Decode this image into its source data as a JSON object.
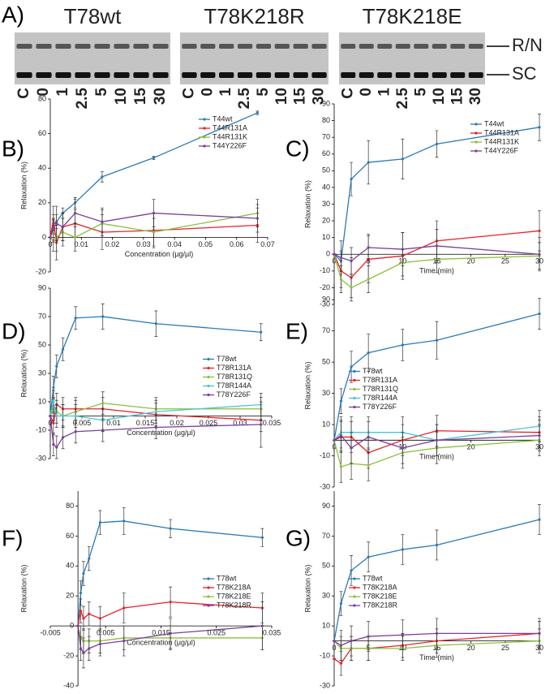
{
  "gel": {
    "panel": "A)",
    "bands": [
      "R/N",
      "SC"
    ],
    "groups": [
      {
        "name": "T78wt",
        "lanes": [
          "C",
          "0",
          "1",
          "2.5",
          "5",
          "10",
          "15",
          "30"
        ]
      },
      {
        "name": "T78K218R",
        "lanes": [
          "C",
          "0",
          "1",
          "2.5",
          "5",
          "10",
          "15",
          "30"
        ]
      },
      {
        "name": "T78K218E",
        "lanes": [
          "C",
          "0",
          "1",
          "2.5",
          "5",
          "10",
          "15",
          "30"
        ]
      }
    ]
  },
  "chart_data": [
    {
      "type": "line",
      "panel": "B)",
      "x_label": "Concentration (µg/µl)",
      "y_label": "Relaxation (%)",
      "x": [
        0,
        0.001,
        0.002,
        0.004,
        0.008,
        0.0167,
        0.0333,
        0.0667
      ],
      "xlim": [
        0,
        0.07
      ],
      "xticks": [
        0,
        0.01,
        0.02,
        0.03,
        0.04,
        0.05,
        0.06,
        0.07
      ],
      "ylim": [
        -20,
        80
      ],
      "yticks": [
        -20,
        0,
        20,
        40,
        60,
        80
      ],
      "legend": "upper right",
      "series": [
        {
          "name": "T44wt",
          "color": "#2a7ab8",
          "values": [
            0,
            8,
            9,
            14,
            20,
            35,
            46,
            72
          ],
          "errors": [
            0,
            3,
            4,
            3,
            3,
            3,
            1,
            1
          ]
        },
        {
          "name": "T44R131A",
          "color": "#e8202a",
          "values": [
            0,
            10,
            -3,
            6,
            8,
            3,
            4,
            7
          ],
          "errors": [
            0,
            8,
            10,
            8,
            8,
            10,
            10,
            10
          ]
        },
        {
          "name": "T44R131K",
          "color": "#8bbf3c",
          "values": [
            0,
            -2,
            0,
            3,
            0,
            8,
            3,
            14
          ],
          "errors": [
            0,
            6,
            8,
            8,
            8,
            8,
            8,
            8
          ]
        },
        {
          "name": "T44Y226F",
          "color": "#7b3f98",
          "values": [
            0,
            5,
            8,
            6,
            14,
            9,
            14,
            11
          ],
          "errors": [
            0,
            8,
            10,
            8,
            8,
            8,
            8,
            8
          ]
        }
      ]
    },
    {
      "type": "line",
      "panel": "C)",
      "x_label": "Time (min)",
      "y_label": "Relaxation (%)",
      "x": [
        0,
        1,
        2.5,
        5,
        10,
        15,
        30
      ],
      "xlim": [
        0,
        30
      ],
      "xticks": [
        0,
        5,
        10,
        15,
        20,
        25,
        30
      ],
      "ylim": [
        -30,
        90
      ],
      "yticks": [
        -30,
        -20,
        -10,
        0,
        10,
        20,
        30,
        40,
        50,
        60,
        70,
        80,
        90
      ],
      "legend": "upper right",
      "series": [
        {
          "name": "T44wt",
          "color": "#2a7ab8",
          "values": [
            0,
            -4,
            45,
            55,
            57,
            66,
            76
          ],
          "errors": [
            0,
            6,
            10,
            13,
            12,
            8,
            8
          ]
        },
        {
          "name": "T44R131A",
          "color": "#e8202a",
          "values": [
            0,
            -10,
            -14,
            -3,
            -1,
            8,
            14
          ],
          "errors": [
            0,
            10,
            12,
            14,
            14,
            12,
            12
          ]
        },
        {
          "name": "T44R131K",
          "color": "#8bbf3c",
          "values": [
            0,
            -15,
            -20,
            -15,
            -5,
            -3,
            -1
          ],
          "errors": [
            0,
            8,
            8,
            8,
            8,
            8,
            8
          ]
        },
        {
          "name": "T44Y226F",
          "color": "#7b3f98",
          "values": [
            0,
            -2,
            -4,
            4,
            3,
            5,
            0
          ],
          "errors": [
            0,
            10,
            8,
            8,
            10,
            10,
            10
          ]
        }
      ]
    },
    {
      "type": "line",
      "panel": "D)",
      "x_label": "Concentration (µg/µl)",
      "y_label": "Relaxation (%)",
      "x": [
        0,
        0.0005,
        0.001,
        0.002,
        0.004,
        0.0083,
        0.0167,
        0.0333
      ],
      "xlim": [
        0,
        0.035
      ],
      "xticks": [
        0,
        0.005,
        0.01,
        0.015,
        0.02,
        0.025,
        0.03,
        0.035
      ],
      "ylim": [
        -30,
        90
      ],
      "yticks": [
        -30,
        -10,
        10,
        30,
        50,
        70,
        90
      ],
      "legend": "center right",
      "series": [
        {
          "name": "T78wt",
          "color": "#2a7ab8",
          "values": [
            0,
            20,
            35,
            47,
            69,
            70,
            65,
            59
          ],
          "errors": [
            0,
            8,
            8,
            8,
            8,
            9,
            9,
            6
          ]
        },
        {
          "name": "T78R131A",
          "color": "#e8202a",
          "values": [
            0,
            -5,
            8,
            5,
            5,
            5,
            1,
            -3
          ],
          "errors": [
            0,
            8,
            8,
            8,
            8,
            8,
            8,
            8
          ]
        },
        {
          "name": "T78R131Q",
          "color": "#8bbf3c",
          "values": [
            0,
            5,
            3,
            0,
            3,
            9,
            5,
            5
          ],
          "errors": [
            0,
            8,
            8,
            8,
            8,
            8,
            8,
            8
          ]
        },
        {
          "name": "T78R144A",
          "color": "#4dc3d8",
          "values": [
            0,
            10,
            0,
            0,
            0,
            -3,
            3,
            8
          ],
          "errors": [
            0,
            8,
            8,
            8,
            8,
            8,
            8,
            8
          ]
        },
        {
          "name": "T78Y226F",
          "color": "#7b3f98",
          "values": [
            0,
            -20,
            -22,
            -15,
            -11,
            -10,
            -8,
            -6
          ],
          "errors": [
            0,
            8,
            8,
            8,
            8,
            8,
            8,
            16
          ]
        }
      ]
    },
    {
      "type": "line",
      "panel": "E)",
      "x_label": "Time (min)",
      "y_label": "Relaxation (%)",
      "x": [
        0,
        1,
        2.5,
        5,
        10,
        15,
        30
      ],
      "xlim": [
        0,
        30
      ],
      "xticks": [
        0,
        10,
        20,
        30
      ],
      "ylim": [
        -30,
        100
      ],
      "yticks": [
        -30,
        -10,
        10,
        30,
        50,
        70,
        90
      ],
      "legend": "center left",
      "series": [
        {
          "name": "T78wt",
          "color": "#2a7ab8",
          "values": [
            0,
            25,
            47,
            56,
            61,
            64,
            81
          ],
          "errors": [
            0,
            8,
            10,
            12,
            10,
            12,
            10
          ]
        },
        {
          "name": "T78R131A",
          "color": "#e8202a",
          "values": [
            0,
            2,
            2,
            -8,
            0,
            6,
            5
          ],
          "errors": [
            0,
            10,
            10,
            10,
            10,
            10,
            10
          ]
        },
        {
          "name": "T78R131Q",
          "color": "#8bbf3c",
          "values": [
            0,
            -17,
            -15,
            -16,
            -8,
            -5,
            0
          ],
          "errors": [
            0,
            10,
            10,
            10,
            10,
            10,
            10
          ]
        },
        {
          "name": "T78R144A",
          "color": "#4dc3d8",
          "values": [
            0,
            5,
            5,
            5,
            5,
            0,
            9
          ],
          "errors": [
            0,
            10,
            10,
            10,
            10,
            10,
            10
          ]
        },
        {
          "name": "T78Y226F",
          "color": "#7b3f98",
          "values": [
            0,
            3,
            -5,
            2,
            -5,
            0,
            3
          ],
          "errors": [
            0,
            10,
            10,
            10,
            10,
            10,
            10
          ]
        }
      ]
    },
    {
      "type": "line",
      "panel": "F)",
      "x_label": "Concentration (µg/µl)",
      "y_label": "Relaxation (%)",
      "x": [
        0,
        0.0005,
        0.001,
        0.002,
        0.004,
        0.0083,
        0.0167,
        0.0333
      ],
      "xlim": [
        -0.005,
        0.035
      ],
      "xticks": [
        -0.005,
        0.005,
        0.015,
        0.025,
        0.035
      ],
      "ylim": [
        -40,
        90
      ],
      "yticks": [
        -40,
        -20,
        0,
        20,
        40,
        60,
        80
      ],
      "legend": "center right",
      "series": [
        {
          "name": "T78wt",
          "color": "#2a7ab8",
          "values": [
            0,
            22,
            35,
            45,
            69,
            70,
            65,
            59
          ],
          "errors": [
            0,
            8,
            8,
            8,
            8,
            9,
            6,
            6
          ]
        },
        {
          "name": "T78K218A",
          "color": "#e8202a",
          "values": [
            0,
            10,
            5,
            8,
            5,
            12,
            16,
            12
          ],
          "errors": [
            0,
            8,
            8,
            8,
            8,
            10,
            10,
            10
          ]
        },
        {
          "name": "T78K218E",
          "color": "#8bbf3c",
          "values": [
            0,
            -8,
            -10,
            -10,
            -10,
            -8,
            -8,
            -8
          ],
          "errors": [
            0,
            8,
            8,
            8,
            8,
            8,
            8,
            8
          ]
        },
        {
          "name": "T78K218R",
          "color": "#7b3f98",
          "values": [
            0,
            -15,
            -18,
            -15,
            -12,
            -10,
            -5,
            0
          ],
          "errors": [
            0,
            8,
            10,
            8,
            8,
            10,
            10,
            16
          ]
        }
      ]
    },
    {
      "type": "line",
      "panel": "G)",
      "x_label": "Time (min)",
      "y_label": "Relaxation (%)",
      "x": [
        0,
        1,
        2.5,
        5,
        10,
        15,
        30
      ],
      "xlim": [
        0,
        30
      ],
      "xticks": [
        0,
        5,
        10,
        15,
        20,
        25,
        30
      ],
      "ylim": [
        -30,
        100
      ],
      "yticks": [
        -30,
        -10,
        10,
        30,
        50,
        70,
        90
      ],
      "legend": "center left",
      "series": [
        {
          "name": "T78wt",
          "color": "#2a7ab8",
          "values": [
            0,
            25,
            47,
            56,
            61,
            64,
            81
          ],
          "errors": [
            0,
            8,
            10,
            10,
            10,
            10,
            10
          ]
        },
        {
          "name": "T78K218A",
          "color": "#e8202a",
          "values": [
            -12,
            -15,
            -5,
            -5,
            -3,
            0,
            5
          ],
          "errors": [
            0,
            8,
            8,
            8,
            8,
            8,
            8
          ]
        },
        {
          "name": "T78K218E",
          "color": "#8bbf3c",
          "values": [
            0,
            -5,
            -5,
            -5,
            -5,
            -3,
            0
          ],
          "errors": [
            0,
            8,
            8,
            8,
            8,
            8,
            8
          ]
        },
        {
          "name": "T78K218R",
          "color": "#7b3f98",
          "values": [
            0,
            -3,
            0,
            3,
            4,
            5,
            5
          ],
          "errors": [
            0,
            10,
            10,
            10,
            10,
            10,
            10
          ]
        }
      ]
    }
  ]
}
